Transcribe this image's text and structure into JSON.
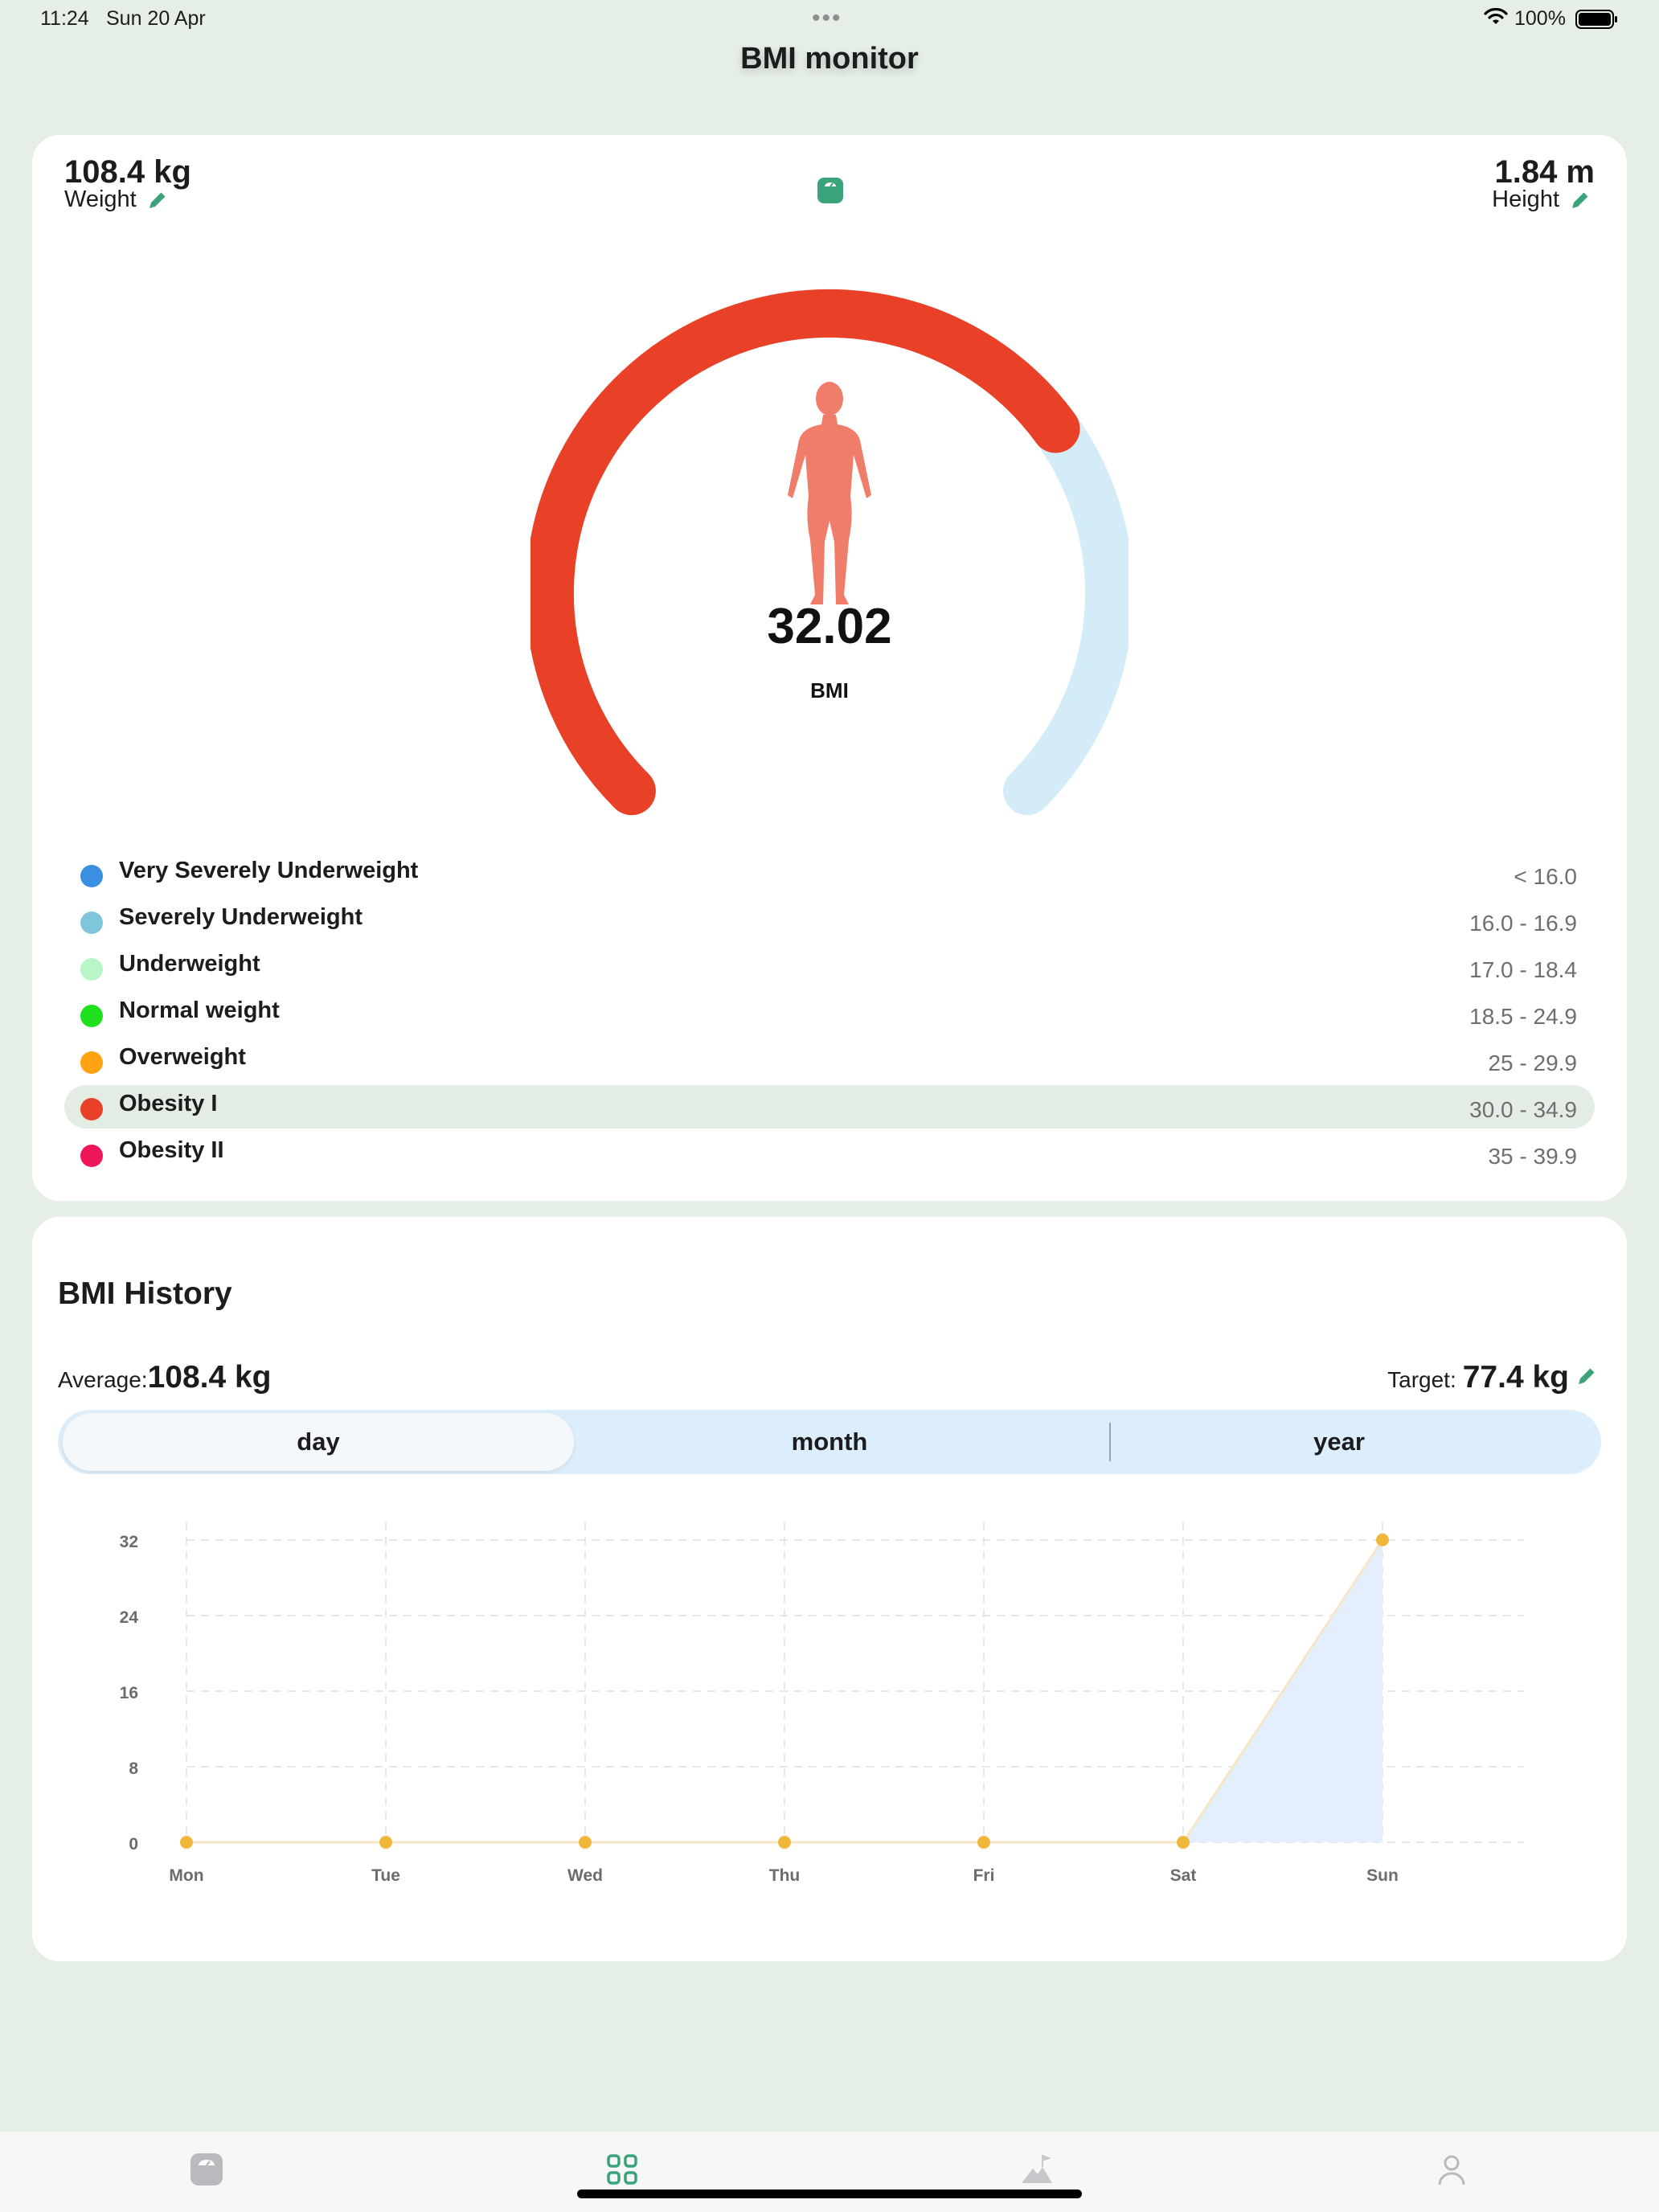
{
  "status_bar": {
    "time": "11:24",
    "date": "Sun 20 Apr",
    "battery": "100%"
  },
  "nav": {
    "title": "BMI monitor"
  },
  "metrics": {
    "weight_value": "108.4 kg",
    "weight_label": "Weight",
    "height_value": "1.84 m",
    "height_label": "Height"
  },
  "gauge": {
    "bmi_value": "32.02",
    "bmi_label": "BMI",
    "fill_fraction": 0.7,
    "fill_color": "#e84127",
    "track_color": "#d3ecf7",
    "figure_color": "#f07c6a"
  },
  "categories": [
    {
      "name": "Very Severely Underweight",
      "range": "< 16.0",
      "color": "#3b8fe0",
      "active": false
    },
    {
      "name": "Severely Underweight",
      "range": "16.0 - 16.9",
      "color": "#7ec6d9",
      "active": false
    },
    {
      "name": "Underweight",
      "range": "17.0 - 18.4",
      "color": "#b8f5c9",
      "active": false
    },
    {
      "name": "Normal weight",
      "range": "18.5 - 24.9",
      "color": "#1fe01f",
      "active": false
    },
    {
      "name": "Overweight",
      "range": "25 - 29.9",
      "color": "#ffa312",
      "active": false
    },
    {
      "name": "Obesity I",
      "range": "30.0 - 34.9",
      "color": "#e84127",
      "active": true
    },
    {
      "name": "Obesity II",
      "range": "35 - 39.9",
      "color": "#f0165a",
      "active": false
    }
  ],
  "history": {
    "title": "BMI History",
    "average_label": "Average:",
    "average_value": "108.4 kg",
    "target_label": "Target:",
    "target_value": "77.4 kg",
    "segments": [
      "day",
      "month",
      "year"
    ],
    "selected_segment": "day"
  },
  "chart_data": {
    "type": "area",
    "title": "BMI History",
    "categories": [
      "Mon",
      "Tue",
      "Wed",
      "Thu",
      "Fri",
      "Sat",
      "Sun"
    ],
    "values": [
      0,
      0,
      0,
      0,
      0,
      0,
      32.02
    ],
    "yticks": [
      0,
      8,
      16,
      24,
      32
    ],
    "ylim": [
      0,
      32
    ],
    "xlabel": "",
    "ylabel": "",
    "grid": true,
    "point_color": "#f0b83a",
    "fill_color": "#e3effc"
  },
  "icons": {
    "weight": "edit-pencil-icon",
    "height": "edit-pencil-icon",
    "target": "edit-pencil-icon",
    "scale": "scale-icon",
    "tabs": [
      "scale-icon",
      "grid-icon",
      "mountain-flag-icon",
      "person-icon"
    ]
  },
  "colors": {
    "accent": "#3aa37a",
    "background": "#e5efe6"
  }
}
